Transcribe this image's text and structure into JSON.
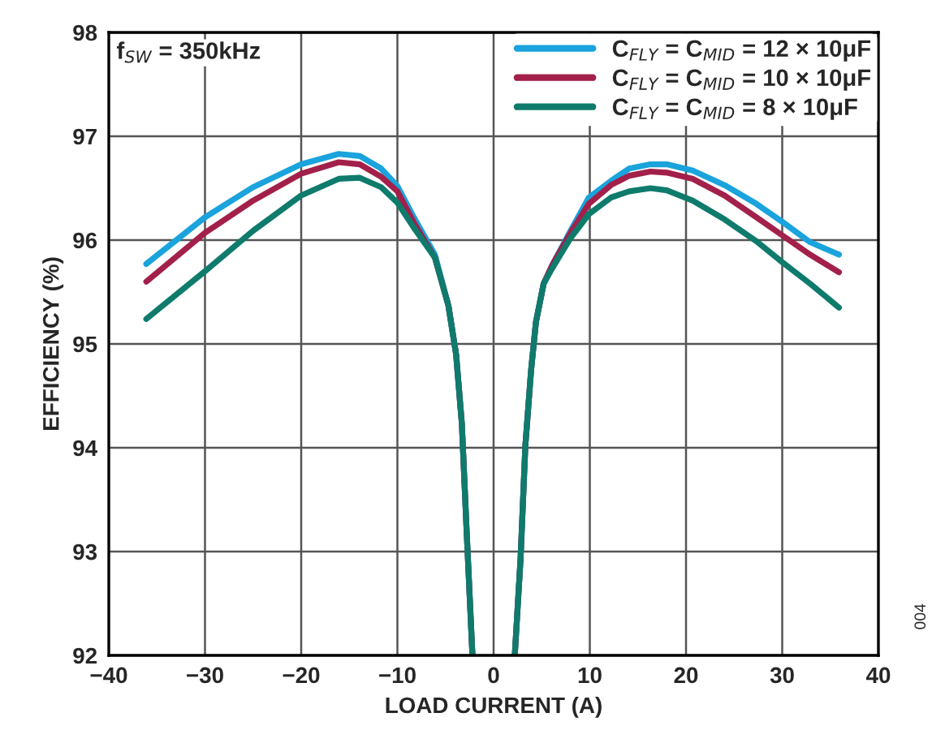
{
  "chart_data": {
    "type": "line",
    "xlabel": "LOAD CURRENT (A)",
    "ylabel": "EFFICIENCY (%)",
    "xlim": [
      -40,
      40
    ],
    "ylim": [
      92,
      98
    ],
    "xticks": [
      {
        "value": -40,
        "label": "−40"
      },
      {
        "value": -30,
        "label": "−30"
      },
      {
        "value": -20,
        "label": "−20"
      },
      {
        "value": -10,
        "label": "−10"
      },
      0,
      10,
      20,
      30,
      40
    ],
    "yticks": [
      92,
      93,
      94,
      95,
      96,
      97,
      98
    ],
    "grid": true,
    "legend": "top right",
    "line_style": "solid",
    "marker": "none",
    "annotations": [
      "f$_{SW}$ = 350kHz",
      "004"
    ],
    "series": [
      {
        "name": "C$_{FLY}$ = C$_{MID}$ = 12 × 10μF",
        "color": "#1aa3dc",
        "x": [
          -36.1,
          -30,
          -25,
          -20,
          -16.1,
          -13.9,
          -11.7,
          -10,
          -8.3,
          -6.1,
          -4.7,
          -3.9,
          -3.3,
          -2.8,
          -2.2,
          0,
          2.2,
          2.8,
          3.3,
          3.9,
          4.4,
          5.2,
          6.1,
          8.0,
          9.9,
          12.2,
          14.1,
          16.3,
          18.0,
          20.7,
          24.0,
          27.3,
          30.1,
          32.9,
          35.9
        ],
        "values": [
          95.77,
          96.22,
          96.51,
          96.73,
          96.83,
          96.81,
          96.69,
          96.52,
          96.22,
          95.86,
          95.37,
          94.9,
          94.23,
          93.19,
          92.0,
          null,
          92.0,
          92.93,
          94.02,
          94.75,
          95.21,
          95.58,
          95.76,
          96.09,
          96.41,
          96.57,
          96.69,
          96.73,
          96.73,
          96.67,
          96.53,
          96.35,
          96.17,
          95.98,
          95.86
        ]
      },
      {
        "name": "C$_{FLY}$ = C$_{MID}$ = 10 × 10μF",
        "color": "#a2204a",
        "x": [
          -36.1,
          -30,
          -25,
          -20,
          -16.1,
          -13.9,
          -11.7,
          -10,
          -8.3,
          -6.1,
          -4.7,
          -3.9,
          -3.3,
          -2.8,
          -2.2,
          0,
          2.2,
          2.8,
          3.3,
          3.9,
          4.4,
          5.2,
          6.1,
          8.0,
          9.9,
          12.2,
          14.1,
          16.3,
          18.0,
          20.7,
          24.0,
          27.3,
          30.1,
          32.9,
          35.9
        ],
        "values": [
          95.6,
          96.07,
          96.38,
          96.64,
          96.75,
          96.73,
          96.61,
          96.47,
          96.17,
          95.83,
          95.37,
          94.9,
          94.23,
          93.19,
          92.0,
          null,
          92.0,
          92.93,
          94.02,
          94.75,
          95.21,
          95.58,
          95.76,
          96.07,
          96.35,
          96.53,
          96.62,
          96.66,
          96.65,
          96.59,
          96.43,
          96.22,
          96.04,
          95.86,
          95.69
        ]
      },
      {
        "name": "C$_{FLY}$ = C$_{MID}$ = 8 × 10μF",
        "color": "#0e7b6c",
        "x": [
          -36.1,
          -30,
          -25,
          -20,
          -16.1,
          -13.9,
          -11.7,
          -10,
          -8.3,
          -6.1,
          -4.7,
          -3.9,
          -3.3,
          -2.8,
          -2.2,
          0,
          2.2,
          2.8,
          3.3,
          3.9,
          4.4,
          5.2,
          6.1,
          8.0,
          9.9,
          12.2,
          14.1,
          16.3,
          18.0,
          20.7,
          24.0,
          27.3,
          30.1,
          32.9,
          35.9
        ],
        "values": [
          95.24,
          95.7,
          96.09,
          96.43,
          96.59,
          96.6,
          96.51,
          96.36,
          96.12,
          95.83,
          95.37,
          94.9,
          94.23,
          93.19,
          92.0,
          null,
          92.0,
          92.93,
          94.02,
          94.75,
          95.21,
          95.58,
          95.73,
          96.02,
          96.25,
          96.41,
          96.47,
          96.5,
          96.48,
          96.38,
          96.2,
          95.99,
          95.78,
          95.58,
          95.35
        ]
      }
    ]
  }
}
